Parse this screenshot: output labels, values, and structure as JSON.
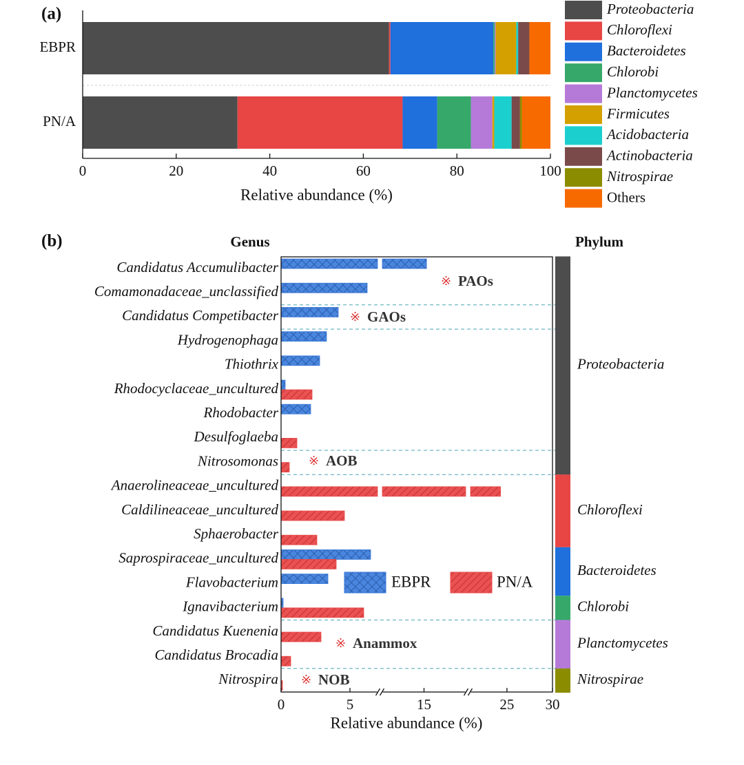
{
  "chart_data": [
    {
      "type": "stacked-bar",
      "orientation": "horizontal",
      "panel": "(a)",
      "categories": [
        "EBPR",
        "PN/A"
      ],
      "series": [
        {
          "name": "Proteobacteria",
          "color": "#4d4d4d",
          "values": [
            65.5,
            33.1
          ]
        },
        {
          "name": "Chloroflexi",
          "color": "#e84545",
          "values": [
            0.3,
            35.3
          ]
        },
        {
          "name": "Bacteroidetes",
          "color": "#1f6fdc",
          "values": [
            22.0,
            7.4
          ]
        },
        {
          "name": "Chlorobi",
          "color": "#35a86a",
          "values": [
            0.3,
            7.2
          ]
        },
        {
          "name": "Planctomycetes",
          "color": "#b57ad8",
          "values": [
            0.2,
            4.6
          ]
        },
        {
          "name": "Firmicutes",
          "color": "#d4a000",
          "values": [
            4.4,
            0.4
          ]
        },
        {
          "name": "Acidobacteria",
          "color": "#1ccfcf",
          "values": [
            0.4,
            3.7
          ]
        },
        {
          "name": "Actinobacteria",
          "color": "#7a4a4a",
          "values": [
            2.4,
            1.8
          ]
        },
        {
          "name": "Nitrospirae",
          "color": "#8c8c00",
          "values": [
            0.0,
            0.4
          ]
        },
        {
          "name": "Others",
          "color": "#f76a00",
          "values": [
            4.5,
            6.1
          ]
        }
      ],
      "xlim": [
        0,
        100
      ],
      "xticks": [
        0,
        20,
        40,
        60,
        80,
        100
      ],
      "xlabel": "Relative abundance (%)"
    },
    {
      "type": "grouped-bar",
      "orientation": "horizontal",
      "panel": "(b)",
      "categories_title": "Genus",
      "groups_title": "Phylum",
      "categories": [
        "Candidatus Accumulibacter",
        "Comamonadaceae_unclassified",
        "Candidatus Competibacter",
        "Hydrogenophaga",
        "Thiothrix",
        "Rhodocyclaceae_uncultured",
        "Rhodobacter",
        "Desulfoglaeba",
        "Nitrosomonas",
        "Anaerolineaceae_uncultured",
        "Caldilineaceae_uncultured",
        "Sphaerobacter",
        "Saprospiraceae_uncultured",
        "Flavobacterium",
        "Ignavibacterium",
        "Candidatus Kuenenia",
        "Candidatus Brocadia",
        "Nitrospira"
      ],
      "series": [
        {
          "name": "EBPR",
          "color": "#3a78d8",
          "values": [
            15.3,
            6.25,
            4.15,
            3.3,
            2.8,
            0.3,
            2.15,
            null,
            null,
            null,
            null,
            null,
            6.5,
            3.4,
            0.15,
            null,
            null,
            null
          ]
        },
        {
          "name": "PN/A",
          "color": "#e84a4a",
          "values": [
            null,
            null,
            null,
            null,
            null,
            2.25,
            null,
            1.15,
            0.6,
            24.3,
            4.6,
            2.6,
            4.0,
            null,
            6.0,
            2.9,
            0.7,
            0.1
          ]
        }
      ],
      "xlim": [
        0,
        30
      ],
      "xbreaks": [
        [
          7,
          10
        ],
        [
          20,
          21
        ]
      ],
      "xticks": [
        0,
        5,
        15,
        25,
        30
      ],
      "xlabel": "Relative abundance (%)",
      "groups": [
        {
          "name": "Proteobacteria",
          "color": "#4d4d4d"
        },
        {
          "name": "Chloroflexi",
          "color": "#e84545"
        },
        {
          "name": "Bacteroidetes",
          "color": "#1f6fdc"
        },
        {
          "name": "Chlorobi",
          "color": "#35a86a"
        },
        {
          "name": "Planctomycetes",
          "color": "#b57ad8"
        },
        {
          "name": "Nitrospirae",
          "color": "#8c8c00"
        }
      ],
      "annotation_marker": "※",
      "annotations": [
        "PAOs",
        "GAOs",
        "AOB",
        "Anammox",
        "NOB"
      ]
    }
  ]
}
